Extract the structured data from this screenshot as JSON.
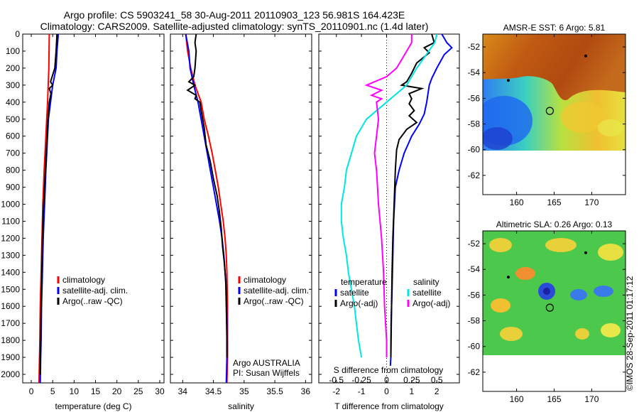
{
  "header": {
    "line1": "Argo profile: CS 5903241_58 30-Aug-2011 20110903_123 56.981S 164.423E",
    "line2": "Climatology: CARS2009. Satellite-adjusted climatology: synTS_20110901.nc (1.4d later)"
  },
  "stamp": "©IMOS 28-Sep-2011 01:17:12",
  "colors": {
    "climatology": "#ff0000",
    "satellite": "#0000ff",
    "argo": "#000000",
    "s_satellite": "#00e5e5",
    "s_argo": "#ff00ff"
  },
  "chart_data": [
    {
      "type": "line",
      "xlabel": "temperature (deg C)",
      "xlim": [
        -2,
        31
      ],
      "ylim": [
        0,
        2050
      ],
      "xticks": [
        0,
        5,
        10,
        15,
        20,
        25,
        30
      ],
      "yticks": [
        0,
        100,
        200,
        300,
        400,
        500,
        600,
        700,
        800,
        900,
        1000,
        1100,
        1200,
        1300,
        1400,
        1500,
        1600,
        1700,
        1800,
        1900,
        2000
      ],
      "legend": [
        "climatology",
        "satellite-adj. clim.",
        "Argo(..raw -QC)"
      ],
      "series": [
        {
          "name": "climatology",
          "color": "#ff0000",
          "points": [
            [
              4.2,
              0
            ],
            [
              4.1,
              200
            ],
            [
              3.8,
              400
            ],
            [
              3.4,
              600
            ],
            [
              3.0,
              800
            ],
            [
              2.7,
              1000
            ],
            [
              2.5,
              1200
            ],
            [
              2.3,
              1400
            ],
            [
              2.1,
              1600
            ],
            [
              2.0,
              1800
            ],
            [
              1.8,
              2050
            ]
          ]
        },
        {
          "name": "satellite-adj. clim.",
          "color": "#0000ff",
          "points": [
            [
              6.3,
              0
            ],
            [
              6.0,
              100
            ],
            [
              5.8,
              200
            ],
            [
              5.0,
              300
            ],
            [
              4.5,
              400
            ],
            [
              4.0,
              500
            ],
            [
              3.8,
              600
            ],
            [
              3.4,
              800
            ],
            [
              3.1,
              1000
            ],
            [
              2.8,
              1200
            ],
            [
              2.6,
              1400
            ],
            [
              2.4,
              1600
            ],
            [
              2.3,
              1800
            ],
            [
              2.2,
              1900
            ],
            [
              2.1,
              2050
            ]
          ]
        },
        {
          "name": "Argo(..raw -QC)",
          "color": "#000000",
          "points": [
            [
              6.0,
              0
            ],
            [
              5.8,
              100
            ],
            [
              5.5,
              200
            ],
            [
              4.5,
              280
            ],
            [
              5.0,
              300
            ],
            [
              4.2,
              320
            ],
            [
              4.6,
              350
            ],
            [
              4.2,
              400
            ],
            [
              3.9,
              500
            ],
            [
              3.6,
              650
            ],
            [
              3.2,
              850
            ],
            [
              2.9,
              1000
            ],
            [
              2.6,
              1200
            ],
            [
              2.5,
              1400
            ],
            [
              2.3,
              1600
            ],
            [
              2.2,
              1800
            ],
            [
              2.1,
              1900
            ],
            [
              2.1,
              2000
            ]
          ]
        }
      ]
    },
    {
      "type": "line",
      "xlabel": "salinity",
      "xlim": [
        33.8,
        36.1
      ],
      "ylim": [
        0,
        2050
      ],
      "xticks": [
        34,
        34.5,
        35,
        35.5,
        36
      ],
      "legend": [
        "climatology",
        "satellite-adj. clim.",
        "Argo(..raw -QC)"
      ],
      "annotation": [
        "Argo AUSTRALIA",
        "PI: Susan Wijffels"
      ],
      "series": [
        {
          "name": "climatology",
          "color": "#ff0000",
          "points": [
            [
              34.05,
              0
            ],
            [
              34.08,
              100
            ],
            [
              34.13,
              200
            ],
            [
              34.2,
              300
            ],
            [
              34.3,
              400
            ],
            [
              34.35,
              500
            ],
            [
              34.42,
              600
            ],
            [
              34.48,
              700
            ],
            [
              34.53,
              800
            ],
            [
              34.58,
              900
            ],
            [
              34.62,
              1000
            ],
            [
              34.66,
              1100
            ],
            [
              34.69,
              1200
            ],
            [
              34.71,
              1300
            ],
            [
              34.72,
              1400
            ],
            [
              34.73,
              1600
            ],
            [
              34.73,
              1800
            ],
            [
              34.73,
              1900
            ],
            [
              34.72,
              2050
            ]
          ]
        },
        {
          "name": "satellite-adj. clim.",
          "color": "#0000ff",
          "points": [
            [
              34.05,
              0
            ],
            [
              34.1,
              100
            ],
            [
              34.12,
              200
            ],
            [
              34.18,
              300
            ],
            [
              34.25,
              400
            ],
            [
              34.3,
              500
            ],
            [
              34.35,
              600
            ],
            [
              34.4,
              700
            ],
            [
              34.45,
              800
            ],
            [
              34.5,
              900
            ],
            [
              34.55,
              1000
            ],
            [
              34.6,
              1100
            ],
            [
              34.64,
              1200
            ],
            [
              34.67,
              1300
            ],
            [
              34.69,
              1400
            ],
            [
              34.71,
              1500
            ],
            [
              34.72,
              1700
            ],
            [
              34.72,
              1900
            ],
            [
              34.71,
              2050
            ]
          ]
        },
        {
          "name": "Argo(..raw -QC)",
          "color": "#000000",
          "points": [
            [
              34.22,
              0
            ],
            [
              34.2,
              50
            ],
            [
              34.22,
              100
            ],
            [
              34.2,
              200
            ],
            [
              34.18,
              250
            ],
            [
              34.1,
              280
            ],
            [
              34.2,
              300
            ],
            [
              34.08,
              330
            ],
            [
              34.22,
              360
            ],
            [
              34.2,
              380
            ],
            [
              34.28,
              400
            ],
            [
              34.3,
              450
            ],
            [
              34.35,
              550
            ],
            [
              34.38,
              650
            ],
            [
              34.45,
              750
            ],
            [
              34.5,
              850
            ],
            [
              34.56,
              950
            ],
            [
              34.6,
              1050
            ],
            [
              34.63,
              1150
            ],
            [
              34.65,
              1250
            ],
            [
              34.68,
              1350
            ],
            [
              34.7,
              1450
            ],
            [
              34.71,
              1600
            ],
            [
              34.72,
              1800
            ],
            [
              34.72,
              1900
            ]
          ]
        }
      ]
    },
    {
      "type": "line",
      "xlabel": "T difference from climatology",
      "xlabel2": "S difference from climatology",
      "xlim": [
        -2.7,
        2.9
      ],
      "ylim": [
        0,
        2050
      ],
      "xticks": [
        -2,
        -1,
        0,
        1,
        2
      ],
      "xticks2": [
        -0.5,
        -0.25,
        0,
        0.25,
        0.5
      ],
      "legend_left_title": "temperature",
      "legend_right_title": "salinity",
      "legend": [
        "satellite",
        "Argo(-adj)",
        "satellite",
        "Argo(-adj)"
      ],
      "series": [
        {
          "name": "satellite",
          "color": "#0000ff",
          "points": [
            [
              2.2,
              0
            ],
            [
              2.4,
              50
            ],
            [
              2.6,
              80
            ],
            [
              2.3,
              120
            ],
            [
              2.0,
              200
            ],
            [
              1.8,
              260
            ],
            [
              1.7,
              300
            ],
            [
              1.6,
              400
            ],
            [
              1.5,
              470
            ],
            [
              1.3,
              530
            ],
            [
              1.0,
              600
            ],
            [
              0.7,
              700
            ],
            [
              0.5,
              800
            ],
            [
              0.35,
              900
            ],
            [
              0.28,
              1100
            ],
            [
              0.25,
              1300
            ],
            [
              0.22,
              1500
            ],
            [
              0.18,
              1700
            ],
            [
              0.17,
              1900
            ],
            [
              0.15,
              1950
            ]
          ]
        },
        {
          "name": "Argo(-adj)",
          "color": "#000000",
          "points": [
            [
              1.8,
              0
            ],
            [
              1.9,
              50
            ],
            [
              1.5,
              80
            ],
            [
              1.7,
              110
            ],
            [
              1.2,
              170
            ],
            [
              1.0,
              230
            ],
            [
              0.8,
              280
            ],
            [
              0.6,
              300
            ],
            [
              1.4,
              320
            ],
            [
              0.9,
              350
            ],
            [
              1.0,
              380
            ],
            [
              0.9,
              410
            ],
            [
              1.1,
              450
            ],
            [
              0.9,
              480
            ],
            [
              1.2,
              520
            ],
            [
              0.8,
              560
            ],
            [
              0.5,
              620
            ],
            [
              0.4,
              680
            ],
            [
              0.35,
              800
            ],
            [
              0.3,
              1000
            ],
            [
              0.25,
              1200
            ],
            [
              0.22,
              1400
            ],
            [
              0.2,
              1600
            ],
            [
              0.18,
              1800
            ],
            [
              0.17,
              1900
            ]
          ]
        },
        {
          "name": "satellite",
          "color": "#00e5e5",
          "points": [
            [
              0.5,
              0
            ],
            [
              0.48,
              50
            ],
            [
              0.42,
              100
            ],
            [
              0.3,
              200
            ],
            [
              0.25,
              250
            ],
            [
              0.2,
              300
            ],
            [
              0.0,
              400
            ],
            [
              -0.2,
              500
            ],
            [
              -0.3,
              600
            ],
            [
              -0.35,
              700
            ],
            [
              -0.4,
              800
            ],
            [
              -0.42,
              900
            ],
            [
              -0.45,
              1000
            ],
            [
              -0.45,
              1100
            ],
            [
              -0.43,
              1200
            ],
            [
              -0.4,
              1300
            ],
            [
              -0.38,
              1400
            ],
            [
              -0.35,
              1500
            ],
            [
              -0.32,
              1600
            ],
            [
              -0.3,
              1700
            ],
            [
              -0.28,
              1800
            ],
            [
              -0.25,
              1900
            ]
          ]
        },
        {
          "name": "Argo(-adj)",
          "color": "#ff00ff",
          "points": [
            [
              0.25,
              0
            ],
            [
              0.25,
              50
            ],
            [
              0.2,
              100
            ],
            [
              0.1,
              200
            ],
            [
              0.0,
              250
            ],
            [
              -0.2,
              300
            ],
            [
              -0.05,
              330
            ],
            [
              -0.15,
              360
            ],
            [
              -0.05,
              380
            ],
            [
              -0.1,
              400
            ],
            [
              -0.08,
              500
            ],
            [
              -0.1,
              600
            ],
            [
              -0.12,
              700
            ],
            [
              -0.1,
              800
            ],
            [
              -0.08,
              1000
            ],
            [
              -0.05,
              1200
            ],
            [
              -0.03,
              1400
            ],
            [
              -0.02,
              1600
            ],
            [
              0.0,
              1800
            ],
            [
              0.0,
              1900
            ]
          ]
        }
      ]
    },
    {
      "type": "heatmap",
      "title": "AMSR-E SST: 6 Argo: 5.81",
      "xlim": [
        155.5,
        174.5
      ],
      "ylim": [
        -63.5,
        -51
      ],
      "xticks": [
        160,
        165,
        170
      ],
      "yticks": [
        -52,
        -54,
        -56,
        -58,
        -60,
        -62
      ],
      "marker": [
        164.42,
        -56.98
      ]
    },
    {
      "type": "heatmap",
      "title": "Altimetric SLA: 0.26 Argo: 0.13",
      "xlim": [
        155.5,
        174.5
      ],
      "ylim": [
        -63.5,
        -51
      ],
      "xticks": [
        160,
        165,
        170
      ],
      "yticks": [
        -52,
        -54,
        -56,
        -58,
        -60,
        -62
      ],
      "marker": [
        164.42,
        -56.98
      ]
    }
  ]
}
